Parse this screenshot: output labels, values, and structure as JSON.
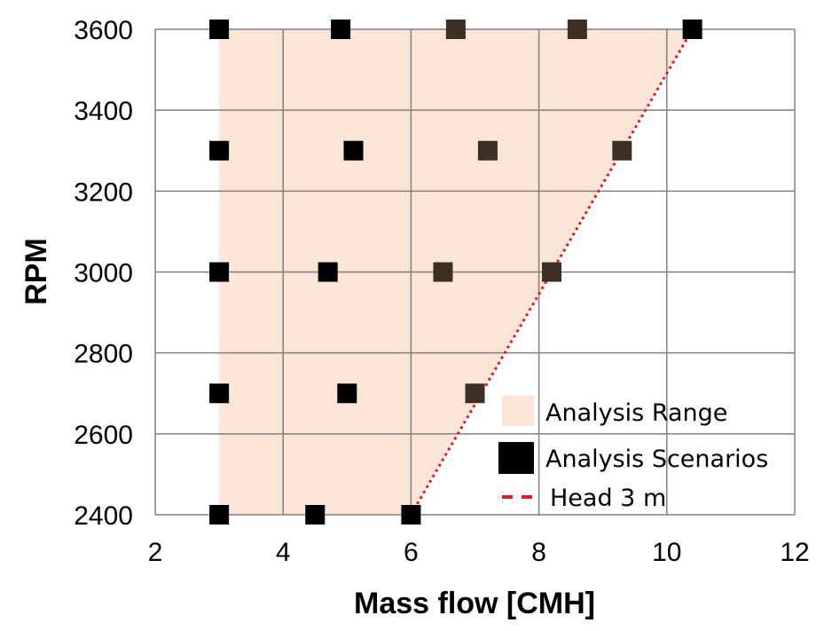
{
  "chart_data": {
    "type": "scatter",
    "title": "",
    "xlabel": "Mass flow [CMH]",
    "ylabel": "RPM",
    "xlim": [
      2,
      12
    ],
    "ylim": [
      2400,
      3600
    ],
    "x_ticks": [
      2,
      4,
      6,
      8,
      10,
      12
    ],
    "y_ticks": [
      2400,
      2600,
      2800,
      3000,
      3200,
      3400,
      3600
    ],
    "grid": true,
    "legend_position": "bottom-right",
    "colors": {
      "range_fill": "#fbe5d6",
      "marker_fill": "#000000",
      "marker_fill_in_range": "#3d2f24",
      "head_line": "#e31a1c",
      "grid": "#808080"
    },
    "analysis_range": {
      "name": "Analysis Range",
      "polygon": [
        [
          3,
          2400
        ],
        [
          6,
          2400
        ],
        [
          10.4,
          3600
        ],
        [
          3,
          3600
        ]
      ]
    },
    "scenarios": {
      "name": "Analysis Scenarios",
      "points": [
        {
          "x": 3,
          "y": 3600
        },
        {
          "x": 4.9,
          "y": 3600
        },
        {
          "x": 6.7,
          "y": 3600
        },
        {
          "x": 8.6,
          "y": 3600
        },
        {
          "x": 10.4,
          "y": 3600
        },
        {
          "x": 3,
          "y": 3300
        },
        {
          "x": 5.1,
          "y": 3300
        },
        {
          "x": 7.2,
          "y": 3300
        },
        {
          "x": 9.3,
          "y": 3300
        },
        {
          "x": 3,
          "y": 3000
        },
        {
          "x": 4.7,
          "y": 3000
        },
        {
          "x": 6.5,
          "y": 3000
        },
        {
          "x": 8.2,
          "y": 3000
        },
        {
          "x": 3,
          "y": 2700
        },
        {
          "x": 5.0,
          "y": 2700
        },
        {
          "x": 7.0,
          "y": 2700
        },
        {
          "x": 3,
          "y": 2400
        },
        {
          "x": 4.5,
          "y": 2400
        },
        {
          "x": 6.0,
          "y": 2400
        }
      ]
    },
    "head_line": {
      "name": "Head 3 m",
      "points": [
        [
          6,
          2400
        ],
        [
          10.4,
          3600
        ]
      ]
    }
  }
}
